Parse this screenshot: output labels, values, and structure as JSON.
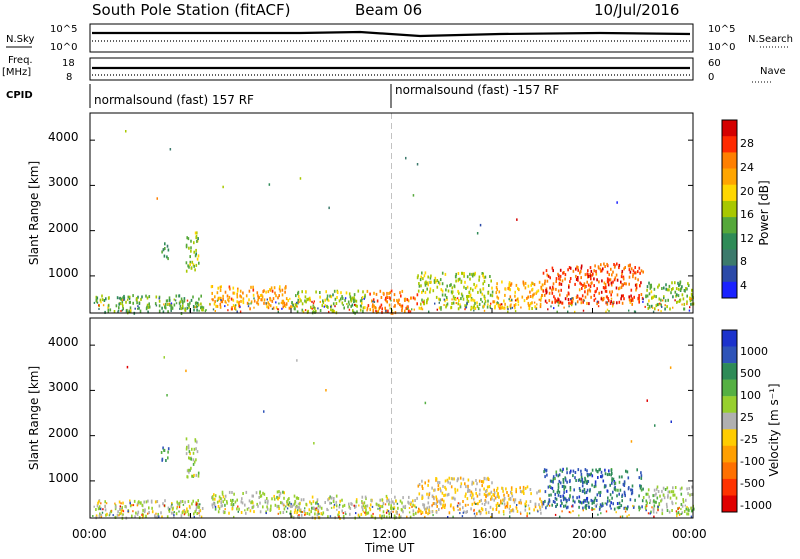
{
  "header": {
    "station": "South Pole Station (fitACF)",
    "beam": "Beam 06",
    "date": "10/Jul/2016"
  },
  "top_panels": {
    "nsky_label": "N.Sky",
    "nsearch_label": "N.Search",
    "sky_ticks": [
      "10^5",
      "10^0"
    ],
    "search_ticks": [
      "10^5",
      "10^0"
    ],
    "freq_label": "Freq.",
    "freq_unit": "[MHz]",
    "freq_ticks": [
      "18",
      "8"
    ],
    "nave_label": "Nave",
    "nave_ticks": [
      "60",
      "0"
    ],
    "cpid_label": "CPID",
    "cpid_left": "normalsound (fast) 157 RF",
    "cpid_right": "normalsound (fast) -157 RF"
  },
  "axes": {
    "ylabel": "Slant Range [km]",
    "xlabel": "Time UT",
    "yticks": [
      "4000",
      "3000",
      "2000",
      "1000"
    ],
    "xticks": [
      "00:00",
      "04:00",
      "08:00",
      "12:00",
      "16:00",
      "20:00",
      "00:00"
    ]
  },
  "power_colorbar": {
    "label": "Power [dB]",
    "ticks": [
      "28",
      "24",
      "20",
      "16",
      "12",
      "8",
      "4"
    ],
    "colors": [
      "#d40000",
      "#ff2a00",
      "#ff7f00",
      "#ffa500",
      "#ffd700",
      "#a8c800",
      "#55a83a",
      "#2e8b57",
      "#3c7a6c",
      "#2b4aa8",
      "#1a22ff"
    ]
  },
  "velocity_colorbar": {
    "label": "Velocity [m s⁻¹]",
    "ticks": [
      "1000",
      "500",
      "100",
      "25",
      "-25",
      "-100",
      "-500",
      "-1000"
    ],
    "colors": [
      "#1c33cc",
      "#2f54b8",
      "#2e8b57",
      "#55b043",
      "#97cf2e",
      "#b0b0b0",
      "#ffcc00",
      "#ff9f00",
      "#ff7000",
      "#ff3300",
      "#e00000"
    ]
  },
  "chart_data": [
    {
      "type": "heatmap",
      "title": "Power",
      "xlabel": "Time UT",
      "ylabel": "Slant Range [km]",
      "xlim": [
        "00:00",
        "24:00"
      ],
      "ylim": [
        180,
        4600
      ],
      "colorbar_label": "Power [dB]",
      "colorbar_range": [
        0,
        30
      ],
      "blobs": [
        {
          "t": [
            0.2,
            4.5
          ],
          "r": [
            200,
            600
          ],
          "value": 12
        },
        {
          "t": [
            2.8,
            3.1
          ],
          "r": [
            1400,
            1800
          ],
          "value": 10
        },
        {
          "t": [
            3.8,
            4.3
          ],
          "r": [
            1100,
            2000
          ],
          "value": 14
        },
        {
          "t": [
            4.8,
            8.0
          ],
          "r": [
            300,
            800
          ],
          "value": 22
        },
        {
          "t": [
            8.0,
            11.0
          ],
          "r": [
            200,
            700
          ],
          "value": 14
        },
        {
          "t": [
            11.0,
            13.0
          ],
          "r": [
            200,
            700
          ],
          "value": 24
        },
        {
          "t": [
            13.0,
            16.0
          ],
          "r": [
            300,
            1100
          ],
          "value": 15
        },
        {
          "t": [
            16.0,
            18.0
          ],
          "r": [
            300,
            900
          ],
          "value": 20
        },
        {
          "t": [
            18.0,
            22.0
          ],
          "r": [
            400,
            1300
          ],
          "value": 26
        },
        {
          "t": [
            22.0,
            24.0
          ],
          "r": [
            300,
            900
          ],
          "value": 13
        }
      ]
    },
    {
      "type": "heatmap",
      "title": "Velocity",
      "xlabel": "Time UT",
      "ylabel": "Slant Range [km]",
      "xlim": [
        "00:00",
        "24:00"
      ],
      "ylim": [
        180,
        4600
      ],
      "colorbar_label": "Velocity [m s⁻¹]",
      "colorbar_range": [
        -1000,
        1000
      ],
      "blobs": [
        {
          "t": [
            0.2,
            4.5
          ],
          "r": [
            200,
            600
          ],
          "value": 50
        },
        {
          "t": [
            2.8,
            3.1
          ],
          "r": [
            1400,
            1800
          ],
          "value": 600
        },
        {
          "t": [
            3.8,
            4.3
          ],
          "r": [
            1100,
            2000
          ],
          "value": 120
        },
        {
          "t": [
            4.8,
            8.0
          ],
          "r": [
            300,
            800
          ],
          "value": 80
        },
        {
          "t": [
            8.0,
            11.0
          ],
          "r": [
            200,
            700
          ],
          "value": 60
        },
        {
          "t": [
            11.0,
            13.0
          ],
          "r": [
            200,
            700
          ],
          "value": 40
        },
        {
          "t": [
            13.0,
            16.0
          ],
          "r": [
            300,
            1100
          ],
          "value": -150
        },
        {
          "t": [
            16.0,
            18.0
          ],
          "r": [
            300,
            900
          ],
          "value": -200
        },
        {
          "t": [
            18.0,
            22.0
          ],
          "r": [
            400,
            1300
          ],
          "value": 700
        },
        {
          "t": [
            22.0,
            24.0
          ],
          "r": [
            300,
            900
          ],
          "value": 150
        }
      ]
    }
  ]
}
